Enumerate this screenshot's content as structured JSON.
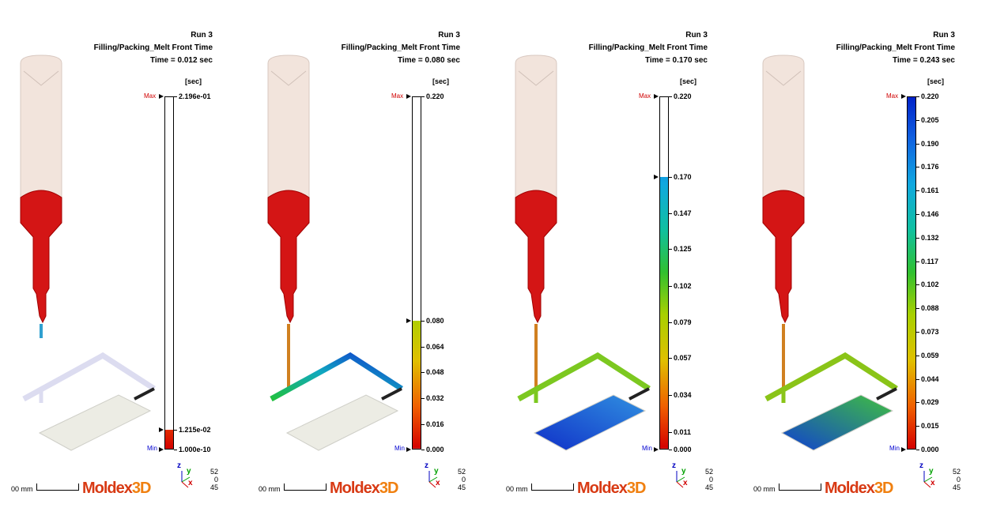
{
  "panels": [
    {
      "run": "Run 3",
      "result": "Filling/Packing_Melt Front Time",
      "time": "Time = 0.012 sec",
      "unit": "[sec]",
      "max_label": "Max",
      "min_label": "Min",
      "ticks": [
        "2.196e-01",
        "1.215e-02",
        "1.000e-10"
      ],
      "tick_fracs": [
        1.0,
        0.055,
        0.0
      ],
      "fill_fraction": 0.055,
      "current_fraction": 0.055,
      "scale_label": "00 mm",
      "logo_a": "Moldex",
      "logo_b": "3D",
      "axis_z": "z",
      "axis_y": "y",
      "axis_x": "x",
      "coords": [
        "52",
        "0",
        "45"
      ]
    },
    {
      "run": "Run 3",
      "result": "Filling/Packing_Melt Front Time",
      "time": "Time = 0.080 sec",
      "unit": "[sec]",
      "max_label": "Max",
      "min_label": "Min",
      "ticks": [
        "0.220",
        "0.080",
        "0.064",
        "0.048",
        "0.032",
        "0.016",
        "0.000"
      ],
      "tick_fracs": [
        1.0,
        0.3636,
        0.2909,
        0.2182,
        0.1455,
        0.0727,
        0.0
      ],
      "fill_fraction": 0.3636,
      "current_fraction": 0.3636,
      "scale_label": "00 mm",
      "logo_a": "Moldex",
      "logo_b": "3D",
      "axis_z": "z",
      "axis_y": "y",
      "axis_x": "x",
      "coords": [
        "52",
        "0",
        "45"
      ]
    },
    {
      "run": "Run 3",
      "result": "Filling/Packing_Melt Front Time",
      "time": "Time = 0.170 sec",
      "unit": "[sec]",
      "max_label": "Max",
      "min_label": "Min",
      "ticks": [
        "0.220",
        "0.170",
        "0.147",
        "0.125",
        "0.102",
        "0.079",
        "0.057",
        "0.034",
        "0.011",
        "0.000"
      ],
      "tick_fracs": [
        1.0,
        0.7727,
        0.6682,
        0.5682,
        0.4636,
        0.3591,
        0.2591,
        0.1545,
        0.05,
        0.0
      ],
      "fill_fraction": 0.7727,
      "current_fraction": 0.7727,
      "scale_label": "00 mm",
      "logo_a": "Moldex",
      "logo_b": "3D",
      "axis_z": "z",
      "axis_y": "y",
      "axis_x": "x",
      "coords": [
        "52",
        "0",
        "45"
      ]
    },
    {
      "run": "Run 3",
      "result": "Filling/Packing_Melt Front Time",
      "time": "Time = 0.243 sec",
      "unit": "[sec]",
      "max_label": "Max",
      "min_label": "Min",
      "ticks": [
        "0.220",
        "0.205",
        "0.190",
        "0.176",
        "0.161",
        "0.146",
        "0.132",
        "0.117",
        "0.102",
        "0.088",
        "0.073",
        "0.059",
        "0.044",
        "0.029",
        "0.015",
        "0.000"
      ],
      "tick_fracs": [
        1.0,
        0.9333,
        0.8667,
        0.8,
        0.7333,
        0.6667,
        0.6,
        0.5333,
        0.4667,
        0.4,
        0.3333,
        0.2667,
        0.2,
        0.1333,
        0.0667,
        0.0
      ],
      "fill_fraction": 1.0,
      "current_fraction": 1.0,
      "scale_label": "00 mm",
      "logo_a": "Moldex",
      "logo_b": "3D",
      "axis_z": "z",
      "axis_y": "y",
      "axis_x": "x",
      "coords": [
        "52",
        "0",
        "45"
      ]
    }
  ],
  "colors": {
    "barrel": "#f2e4dc",
    "melt": "#d41515",
    "unfilled_runner": "#e6e6f2",
    "unfilled_part": "#ececE4",
    "max_label": "#d00000",
    "min_label": "#0000d0"
  }
}
